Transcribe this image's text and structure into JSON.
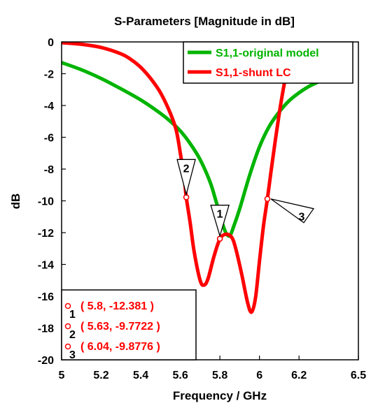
{
  "chart_data": {
    "type": "line",
    "title": "S-Parameters [Magnitude in dB]",
    "xlabel": "Frequency / GHz",
    "ylabel": "dB",
    "xlim": [
      5,
      6.5
    ],
    "ylim": [
      -20,
      0
    ],
    "x_ticks": [
      "5",
      "5.2",
      "5.4",
      "5.6",
      "5.8",
      "6",
      "6.2",
      "6.5"
    ],
    "x_tick_values": [
      5,
      5.2,
      5.4,
      5.6,
      5.8,
      6.0,
      6.2,
      6.5
    ],
    "y_ticks": [
      "0",
      "-2",
      "-4",
      "-6",
      "-8",
      "-10",
      "-12",
      "-14",
      "-16",
      "-18",
      "-20"
    ],
    "y_tick_values": [
      0,
      -2,
      -4,
      -6,
      -8,
      -10,
      -12,
      -14,
      -16,
      -18,
      -20
    ],
    "grid": false,
    "legend_position": "top-right",
    "series": [
      {
        "name": "S1,1-original model",
        "color": "#00b400",
        "points": [
          [
            5.0,
            -1.3
          ],
          [
            5.1,
            -1.75
          ],
          [
            5.2,
            -2.3
          ],
          [
            5.3,
            -2.95
          ],
          [
            5.4,
            -3.65
          ],
          [
            5.5,
            -4.5
          ],
          [
            5.55,
            -5.0
          ],
          [
            5.6,
            -5.6
          ],
          [
            5.65,
            -6.4
          ],
          [
            5.7,
            -7.4
          ],
          [
            5.75,
            -8.8
          ],
          [
            5.78,
            -10.0
          ],
          [
            5.81,
            -11.3
          ],
          [
            5.83,
            -12.0
          ],
          [
            5.85,
            -12.2
          ],
          [
            5.87,
            -11.6
          ],
          [
            5.9,
            -10.5
          ],
          [
            5.95,
            -8.4
          ],
          [
            6.0,
            -6.6
          ],
          [
            6.05,
            -5.3
          ],
          [
            6.1,
            -4.4
          ],
          [
            6.15,
            -3.7
          ],
          [
            6.2,
            -3.2
          ],
          [
            6.25,
            -2.8
          ],
          [
            6.3,
            -2.5
          ],
          [
            6.35,
            -2.2
          ],
          [
            6.38,
            -2.0
          ]
        ]
      },
      {
        "name": "S1,1-shunt LC",
        "color": "#ff0000",
        "points": [
          [
            5.0,
            -0.05
          ],
          [
            5.1,
            -0.15
          ],
          [
            5.2,
            -0.35
          ],
          [
            5.3,
            -0.75
          ],
          [
            5.35,
            -1.1
          ],
          [
            5.4,
            -1.6
          ],
          [
            5.45,
            -2.3
          ],
          [
            5.5,
            -3.2
          ],
          [
            5.55,
            -4.5
          ],
          [
            5.58,
            -5.6
          ],
          [
            5.6,
            -7.0
          ],
          [
            5.62,
            -8.6
          ],
          [
            5.63,
            -9.77
          ],
          [
            5.65,
            -11.4
          ],
          [
            5.67,
            -13.2
          ],
          [
            5.7,
            -15.0
          ],
          [
            5.72,
            -15.3
          ],
          [
            5.74,
            -14.9
          ],
          [
            5.77,
            -13.5
          ],
          [
            5.8,
            -12.4
          ],
          [
            5.83,
            -12.1
          ],
          [
            5.86,
            -12.3
          ],
          [
            5.88,
            -13.0
          ],
          [
            5.91,
            -14.6
          ],
          [
            5.94,
            -16.4
          ],
          [
            5.96,
            -17.0
          ],
          [
            5.98,
            -16.1
          ],
          [
            6.0,
            -13.8
          ],
          [
            6.02,
            -11.6
          ],
          [
            6.04,
            -9.88
          ],
          [
            6.06,
            -8.0
          ],
          [
            6.08,
            -6.2
          ],
          [
            6.1,
            -4.5
          ],
          [
            6.12,
            -3.0
          ],
          [
            6.14,
            -1.7
          ],
          [
            6.16,
            -0.6
          ]
        ]
      }
    ],
    "markers": [
      {
        "id": "1",
        "x": 5.8,
        "y": -12.381,
        "label": "( 5.8, -12.381 )"
      },
      {
        "id": "2",
        "x": 5.63,
        "y": -9.7722,
        "label": "( 5.63, -9.7722 )"
      },
      {
        "id": "3",
        "x": 6.04,
        "y": -9.8776,
        "label": "( 6.04, -9.8776 )"
      }
    ],
    "marker_color": "#ff0000"
  }
}
